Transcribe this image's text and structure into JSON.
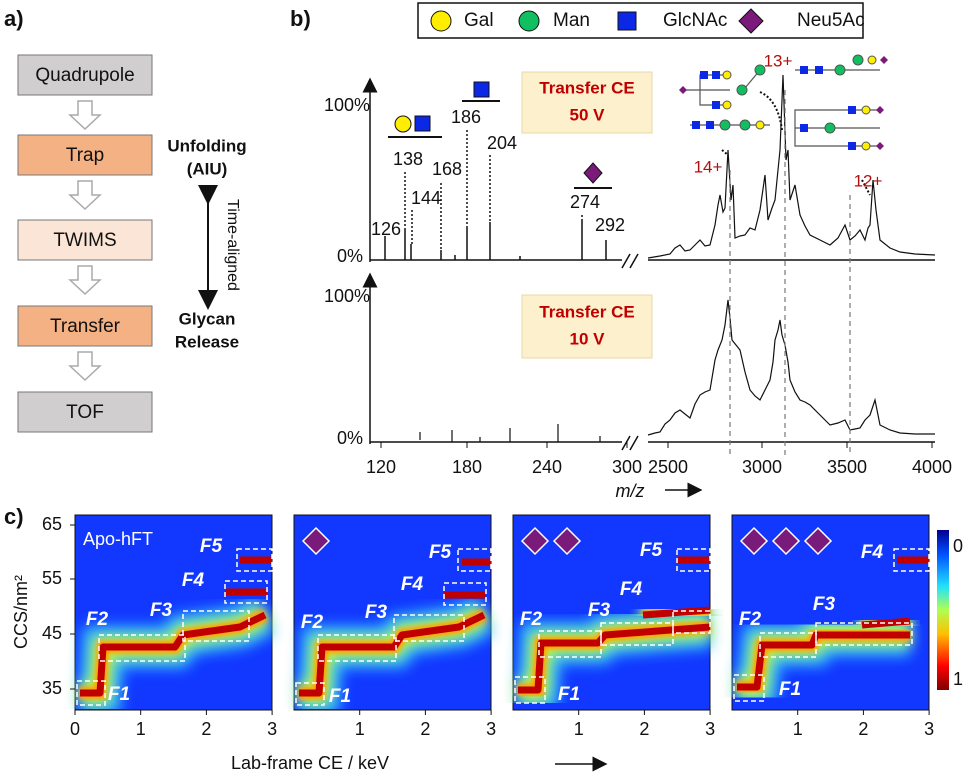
{
  "panel_a": {
    "label": "a)",
    "boxes": [
      "Quadrupole",
      "Trap",
      "TWIMS",
      "Transfer",
      "TOF"
    ],
    "unfolding": [
      "Unfolding",
      "(AIU)"
    ],
    "time_aligned": "Time-aligned",
    "release": [
      "Glycan",
      "Release"
    ]
  },
  "panel_b": {
    "label": "b)",
    "legend": [
      "Gal",
      "Man",
      "GlcNAc",
      "Neu5Ac"
    ],
    "top": {
      "box": [
        "Transfer CE",
        "50 V"
      ],
      "y_labels": [
        "100%",
        "0%"
      ],
      "peaks": [
        126,
        138,
        144,
        168,
        186,
        204,
        274,
        292
      ],
      "charges": [
        "14+",
        "13+",
        "12+"
      ]
    },
    "bottom": {
      "box": [
        "Transfer CE",
        "10 V"
      ],
      "y_labels": [
        "100%",
        "0%"
      ]
    },
    "x_ticks_left": [
      120,
      180,
      240,
      300
    ],
    "x_ticks_right": [
      2500,
      3000,
      3500,
      4000
    ],
    "x_label": "m/z"
  },
  "panel_c": {
    "label": "c)",
    "y_label": "CCS/nm²",
    "y_ticks": [
      35,
      45,
      55,
      65
    ],
    "x_ticks": [
      0,
      1,
      2,
      3
    ],
    "x_label": "Lab-frame CE / keV",
    "colorbar": [
      0,
      1
    ],
    "heatmaps": [
      {
        "title": "Apo-hFT",
        "features": [
          "F1",
          "F2",
          "F3",
          "F4",
          "F5"
        ]
      },
      {
        "features": [
          "F1",
          "F2",
          "F3",
          "F4",
          "F5"
        ]
      },
      {
        "features": [
          "F1",
          "F2",
          "F3",
          "F4",
          "F5"
        ]
      },
      {
        "features": [
          "F1",
          "F2",
          "F3",
          "F4"
        ]
      }
    ]
  }
}
